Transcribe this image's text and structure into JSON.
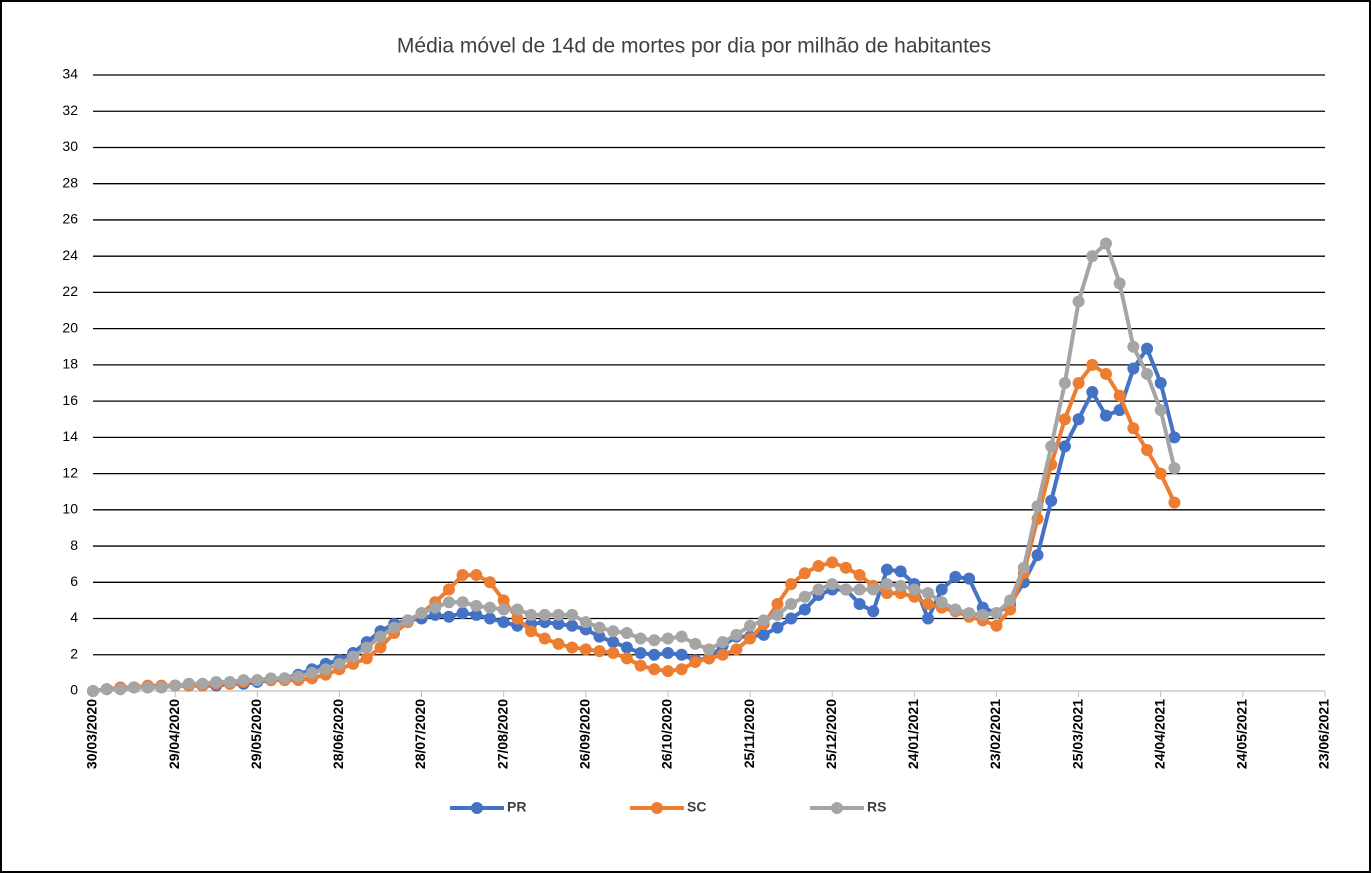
{
  "chart_data": {
    "type": "line",
    "title": "Média móvel de 14d de mortes por dia por milhão de habitantes",
    "x": [
      "30/03/2020",
      "04/04/2020",
      "09/04/2020",
      "14/04/2020",
      "19/04/2020",
      "24/04/2020",
      "29/04/2020",
      "04/05/2020",
      "09/05/2020",
      "14/05/2020",
      "19/05/2020",
      "24/05/2020",
      "29/05/2020",
      "03/06/2020",
      "08/06/2020",
      "13/06/2020",
      "18/06/2020",
      "23/06/2020",
      "28/06/2020",
      "03/07/2020",
      "08/07/2020",
      "13/07/2020",
      "18/07/2020",
      "23/07/2020",
      "28/07/2020",
      "02/08/2020",
      "07/08/2020",
      "12/08/2020",
      "17/08/2020",
      "22/08/2020",
      "27/08/2020",
      "01/09/2020",
      "06/09/2020",
      "11/09/2020",
      "16/09/2020",
      "21/09/2020",
      "26/09/2020",
      "01/10/2020",
      "06/10/2020",
      "11/10/2020",
      "16/10/2020",
      "21/10/2020",
      "26/10/2020",
      "31/10/2020",
      "05/11/2020",
      "10/11/2020",
      "15/11/2020",
      "20/11/2020",
      "25/11/2020",
      "30/11/2020",
      "05/12/2020",
      "10/12/2020",
      "15/12/2020",
      "20/12/2020",
      "25/12/2020",
      "30/12/2020",
      "04/01/2021",
      "09/01/2021",
      "14/01/2021",
      "19/01/2021",
      "24/01/2021",
      "29/01/2021",
      "03/02/2021",
      "08/02/2021",
      "13/02/2021",
      "18/02/2021",
      "23/02/2021",
      "28/02/2021",
      "05/03/2021",
      "10/03/2021",
      "15/03/2021",
      "20/03/2021",
      "25/03/2021",
      "30/03/2021",
      "04/04/2021",
      "09/04/2021",
      "14/04/2021",
      "19/04/2021",
      "24/04/2021",
      "29/04/2021"
    ],
    "series": [
      {
        "name": "PR",
        "color": "#4472c4",
        "values": [
          0,
          0.1,
          0.1,
          0.2,
          0.2,
          0.2,
          0.3,
          0.3,
          0.3,
          0.3,
          0.4,
          0.4,
          0.5,
          0.6,
          0.7,
          0.9,
          1.2,
          1.5,
          1.7,
          2.1,
          2.7,
          3.3,
          3.7,
          3.9,
          4.0,
          4.2,
          4.1,
          4.3,
          4.2,
          4.0,
          3.8,
          3.6,
          3.7,
          3.8,
          3.7,
          3.6,
          3.4,
          3.0,
          2.7,
          2.4,
          2.1,
          2.0,
          2.1,
          2.0,
          1.7,
          1.8,
          2.5,
          3.0,
          3.0,
          3.1,
          3.5,
          4.0,
          4.5,
          5.3,
          5.6,
          5.6,
          4.8,
          4.4,
          6.7,
          6.6,
          5.9,
          4.0,
          5.6,
          6.3,
          6.2,
          4.6,
          4.3,
          4.8,
          6.0,
          7.5,
          10.5,
          13.5,
          15.0,
          16.5,
          15.2,
          15.5,
          17.8,
          18.9,
          17.0,
          14.0
        ]
      },
      {
        "name": "SC",
        "color": "#ed7d31",
        "values": [
          0,
          0.1,
          0.2,
          0.2,
          0.3,
          0.3,
          0.3,
          0.3,
          0.3,
          0.4,
          0.4,
          0.5,
          0.6,
          0.6,
          0.6,
          0.6,
          0.7,
          0.9,
          1.2,
          1.5,
          1.8,
          2.4,
          3.2,
          3.8,
          4.3,
          4.9,
          5.6,
          6.4,
          6.4,
          6.0,
          5.0,
          4.0,
          3.3,
          2.9,
          2.6,
          2.4,
          2.3,
          2.2,
          2.1,
          1.8,
          1.4,
          1.2,
          1.1,
          1.2,
          1.6,
          1.8,
          2.0,
          2.3,
          2.9,
          3.7,
          4.8,
          5.9,
          6.5,
          6.9,
          7.1,
          6.8,
          6.4,
          5.8,
          5.4,
          5.4,
          5.2,
          4.8,
          4.6,
          4.4,
          4.1,
          3.9,
          3.6,
          4.5,
          6.5,
          9.5,
          12.5,
          15.0,
          17.0,
          18.0,
          17.5,
          16.3,
          14.5,
          13.3,
          12.0,
          10.4
        ]
      },
      {
        "name": "RS",
        "color": "#a5a5a5",
        "values": [
          0,
          0.1,
          0.1,
          0.2,
          0.2,
          0.2,
          0.3,
          0.4,
          0.4,
          0.5,
          0.5,
          0.6,
          0.6,
          0.7,
          0.7,
          0.8,
          1.0,
          1.2,
          1.5,
          1.9,
          2.4,
          3.0,
          3.5,
          3.9,
          4.3,
          4.6,
          4.9,
          4.9,
          4.7,
          4.6,
          4.5,
          4.5,
          4.2,
          4.2,
          4.2,
          4.2,
          3.8,
          3.5,
          3.3,
          3.2,
          2.9,
          2.8,
          2.9,
          3.0,
          2.6,
          2.3,
          2.7,
          3.1,
          3.6,
          3.9,
          4.2,
          4.8,
          5.2,
          5.6,
          5.9,
          5.6,
          5.6,
          5.6,
          5.9,
          5.8,
          5.6,
          5.4,
          4.9,
          4.5,
          4.3,
          4.2,
          4.3,
          5.0,
          6.8,
          10.2,
          13.5,
          17.0,
          21.5,
          24.0,
          24.7,
          22.5,
          19.0,
          17.5,
          15.5,
          12.3
        ]
      }
    ],
    "xlim": [
      "30/03/2020",
      "23/06/2021"
    ],
    "xticks": [
      "30/03/2020",
      "29/04/2020",
      "29/05/2020",
      "28/06/2020",
      "28/07/2020",
      "27/08/2020",
      "26/09/2020",
      "26/10/2020",
      "25/11/2020",
      "25/12/2020",
      "24/01/2021",
      "23/02/2021",
      "25/03/2021",
      "24/04/2021",
      "24/05/2021",
      "23/06/2021"
    ],
    "ylim": [
      0,
      34
    ],
    "yticks": [
      0,
      2,
      4,
      6,
      8,
      10,
      12,
      14,
      16,
      18,
      20,
      22,
      24,
      26,
      28,
      30,
      32,
      34
    ],
    "grid": true,
    "legend": "bottom"
  }
}
